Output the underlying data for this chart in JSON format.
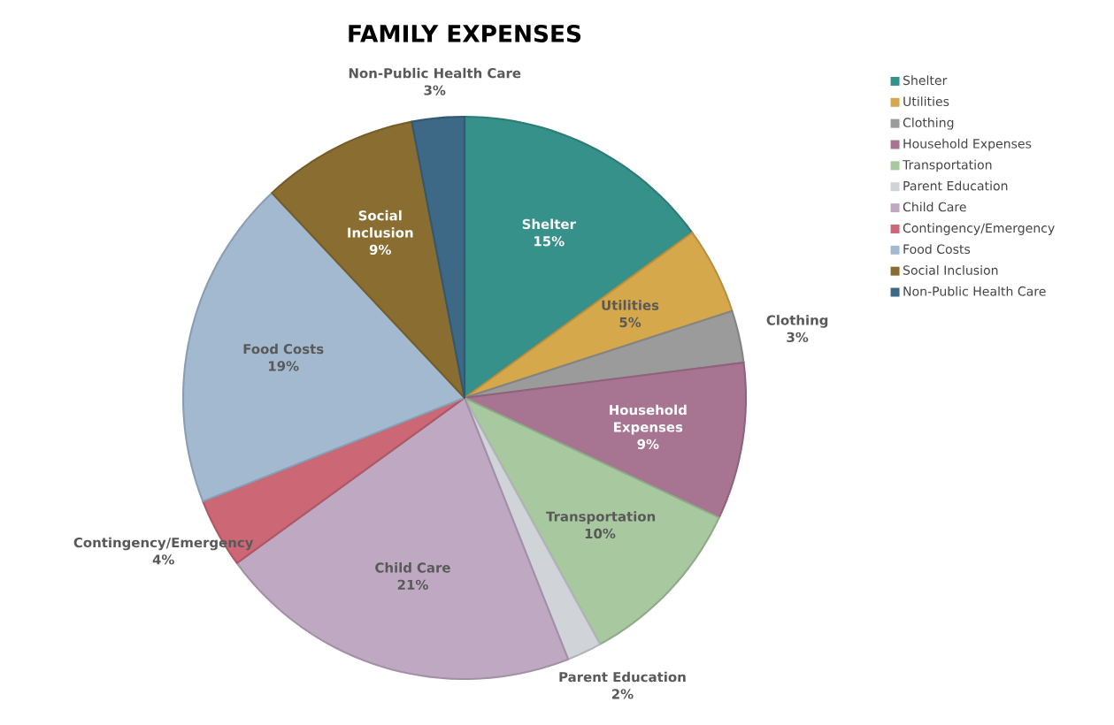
{
  "chart_data": {
    "type": "pie",
    "title": "FAMILY EXPENSES",
    "categories": [
      "Shelter",
      "Utilities",
      "Clothing",
      "Household Expenses",
      "Transportation",
      "Parent Education",
      "Child Care",
      "Contingency/Emergency",
      "Food Costs",
      "Social Inclusion",
      "Non-Public Health Care"
    ],
    "values": [
      15,
      5,
      3,
      9,
      10,
      2,
      21,
      4,
      19,
      9,
      3
    ],
    "value_labels": [
      "15%",
      "5%",
      "3%",
      "9%",
      "10%",
      "2%",
      "21%",
      "4%",
      "19%",
      "9%",
      "3%"
    ],
    "colors": [
      "#35918a",
      "#d6a84c",
      "#9b9b9b",
      "#a77591",
      "#a8c8a0",
      "#d0d4d9",
      "#bfa9c2",
      "#cc6776",
      "#a3b9d0",
      "#8a6d30",
      "#3d6886"
    ],
    "legend": "right"
  }
}
